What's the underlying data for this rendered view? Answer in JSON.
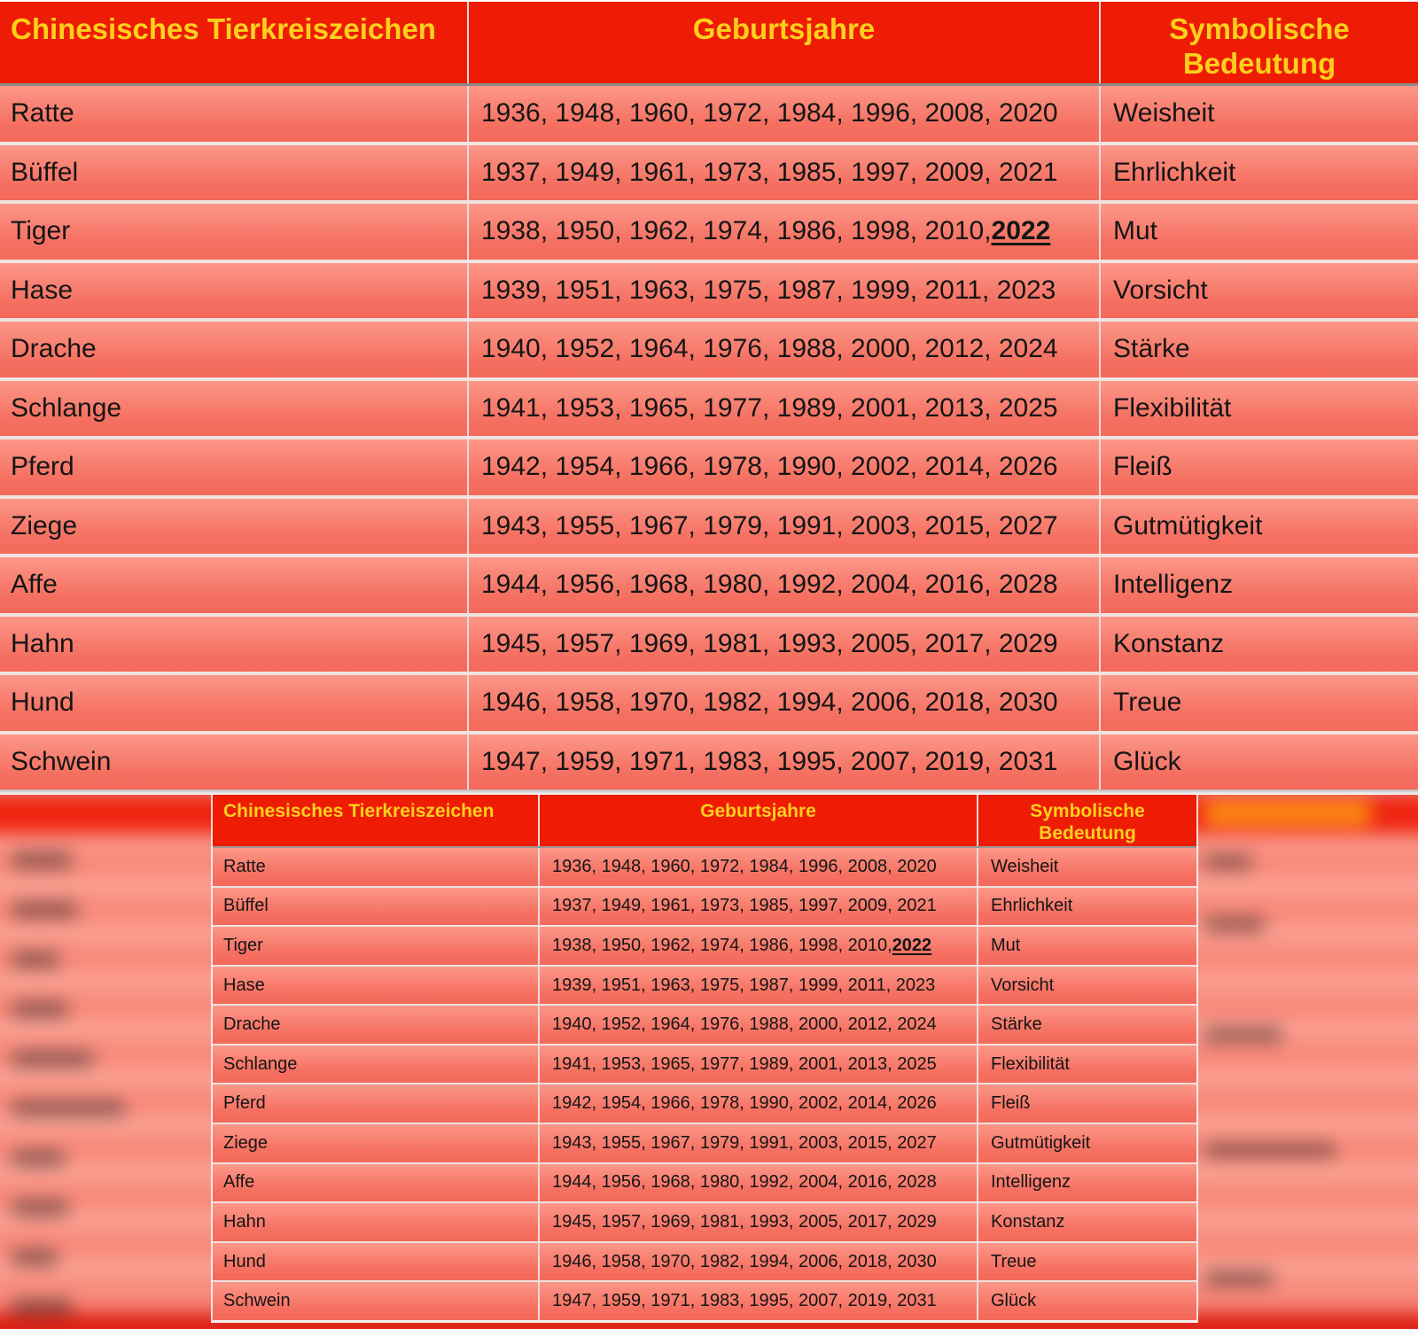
{
  "table": {
    "headers": {
      "sign": "Chinesisches Tierkreiszeichen",
      "years": "Geburtsjahre",
      "meaning_lines": [
        "Symbolische",
        "Bedeutung"
      ]
    },
    "rows": [
      {
        "sign": "Ratte",
        "years": "1936, 1948, 1960, 1972, 1984, 1996, 2008, 2020",
        "meaning": "Weisheit"
      },
      {
        "sign": "Büffel",
        "years": "1937, 1949, 1961, 1973, 1985, 1997, 2009, 2021",
        "meaning": "Ehrlichkeit"
      },
      {
        "sign": "Tiger",
        "years": "1938, 1950, 1962, 1974, 1986, 1998, 2010, ",
        "year_highlight": "2022",
        "meaning": "Mut"
      },
      {
        "sign": "Hase",
        "years": "1939, 1951, 1963, 1975, 1987, 1999, 2011, 2023",
        "meaning": "Vorsicht"
      },
      {
        "sign": "Drache",
        "years": "1940, 1952, 1964, 1976, 1988, 2000, 2012, 2024",
        "meaning": "Stärke"
      },
      {
        "sign": "Schlange",
        "years": "1941, 1953, 1965, 1977, 1989, 2001, 2013, 2025",
        "meaning": "Flexibilität"
      },
      {
        "sign": "Pferd",
        "years": "1942, 1954, 1966, 1978, 1990, 2002, 2014, 2026",
        "meaning": "Fleiß"
      },
      {
        "sign": "Ziege",
        "years": "1943, 1955, 1967, 1979, 1991, 2003, 2015, 2027",
        "meaning": "Gutmütigkeit"
      },
      {
        "sign": "Affe",
        "years": "1944, 1956, 1968, 1980, 1992, 2004, 2016, 2028",
        "meaning": "Intelligenz"
      },
      {
        "sign": "Hahn",
        "years": "1945, 1957, 1969, 1981, 1993, 2005, 2017, 2029",
        "meaning": "Konstanz"
      },
      {
        "sign": "Hund",
        "years": "1946, 1958, 1970, 1982, 1994, 2006, 2018, 2030",
        "meaning": "Treue"
      },
      {
        "sign": "Schwein",
        "years": "1947, 1959, 1971, 1983, 1995, 2007, 2019, 2031",
        "meaning": "Glück"
      }
    ]
  },
  "colors": {
    "header_red": "#ee1b05",
    "header_text_yellow": "#fdd01c",
    "row_gradient_top": "#fc9789",
    "row_gradient_bottom": "#f4695a",
    "cell_text": "#151515"
  }
}
